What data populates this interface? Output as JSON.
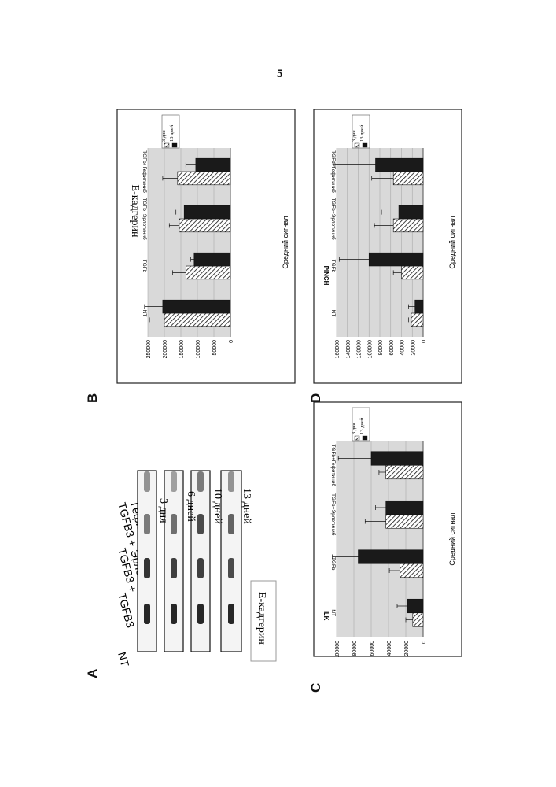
{
  "page_number": "5",
  "figure_caption": "ФИГ. 5",
  "panels": {
    "A": {
      "letter": "A",
      "lanes": [
        "NT",
        "TGFB3",
        "TGFB3 +",
        "Эрлотиниб",
        "TGFB3 +",
        "Гефитиниб"
      ],
      "timepoints": [
        "3 дня",
        "6 дней",
        "10 дней",
        "13 дней"
      ],
      "protein_label": "Е-кадгерин",
      "band_intensity": [
        [
          0.9,
          0.9,
          0.9,
          0.9
        ],
        [
          0.85,
          0.8,
          0.8,
          0.75
        ],
        [
          0.55,
          0.6,
          0.75,
          0.65
        ],
        [
          0.45,
          0.4,
          0.55,
          0.45
        ]
      ]
    },
    "B": {
      "letter": "B"
    },
    "C": {
      "letter": "C"
    },
    "D": {
      "letter": "D"
    }
  },
  "chart_data": [
    {
      "panel": "B",
      "type": "bar",
      "title": "Е-кадгерин",
      "ylabel": "Средний сигнал",
      "ylim": [
        0,
        250000
      ],
      "yticks": [
        "0",
        "50000",
        "100000",
        "150000",
        "200000",
        "250000"
      ],
      "categories": [
        "NT",
        "TGFb",
        "TGFb+Эрлотиниб",
        "TGFb+Гефитиниб"
      ],
      "series": [
        {
          "name": "3 дня",
          "values": [
            200000,
            135000,
            155000,
            160000
          ],
          "errors": [
            45000,
            40000,
            30000,
            45000
          ]
        },
        {
          "name": "13 дней",
          "values": [
            205000,
            110000,
            140000,
            105000
          ],
          "errors": [
            55000,
            10000,
            25000,
            30000
          ]
        }
      ]
    },
    {
      "panel": "C",
      "type": "bar",
      "title": "ILK",
      "ylabel": "Средний сигнал",
      "ylim": [
        0,
        100000
      ],
      "yticks": [
        "0",
        "20000",
        "40000",
        "60000",
        "80000",
        "100000"
      ],
      "categories": [
        "NT",
        "TGFb",
        "TGFb+Эрлотиниб",
        "TGFb+Гефитиниб"
      ],
      "series": [
        {
          "name": "3 дня",
          "values": [
            12000,
            27000,
            43000,
            43000
          ],
          "errors": [
            8000,
            12000,
            24000,
            8000
          ]
        },
        {
          "name": "13 дней",
          "values": [
            18000,
            75000,
            43000,
            60000
          ],
          "errors": [
            12000,
            30000,
            12000,
            38000
          ]
        }
      ]
    },
    {
      "panel": "D",
      "type": "bar",
      "title": "PINCH",
      "ylabel": "Средний сигнал",
      "ylim": [
        0,
        160000
      ],
      "yticks": [
        "0",
        "20000",
        "40000",
        "60000",
        "80000",
        "100000",
        "120000",
        "140000",
        "160000"
      ],
      "categories": [
        "NT",
        "TGFb",
        "TGFb+Эрлотиниб",
        "TGFb+Гефитиниб"
      ],
      "series": [
        {
          "name": "3 дня",
          "values": [
            22000,
            40000,
            55000,
            55000
          ],
          "errors": [
            5000,
            15000,
            35000,
            40000
          ]
        },
        {
          "name": "13 дней",
          "values": [
            15000,
            100000,
            45000,
            88000
          ],
          "errors": [
            12000,
            55000,
            32000,
            75000
          ]
        }
      ]
    }
  ]
}
